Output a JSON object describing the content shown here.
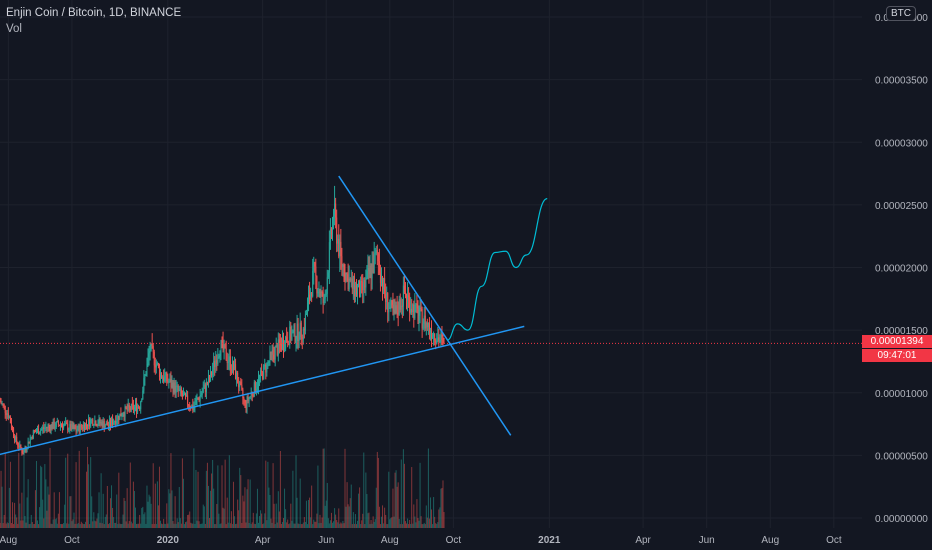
{
  "header": {
    "title": "Enjin Coin / Bitcoin, 1D, BINANCE",
    "indicator": "Vol"
  },
  "currency_badge": "BTC",
  "last_price": {
    "value": 1.394e-05,
    "label": "0.00001394",
    "countdown": "09:47:01",
    "color": "#f23645"
  },
  "colors": {
    "background": "#131722",
    "up": "#26a69a",
    "down": "#ef5350",
    "trendline": "#2196f3",
    "projection": "#00bcd4",
    "grid": "#1e222d"
  },
  "chart_data": {
    "type": "candlestick",
    "symbol": "ENJBTC",
    "interval": "1D",
    "exchange": "BINANCE",
    "x_range": [
      "2019-07-24",
      "2021-10-28"
    ],
    "ylim": [
      0,
      4e-05
    ],
    "y_ticks": [
      {
        "value": 0.0,
        "label": "0.00000000"
      },
      {
        "value": 5e-06,
        "label": "0.00000500"
      },
      {
        "value": 1e-05,
        "label": "0.00001000"
      },
      {
        "value": 1.5e-05,
        "label": "0.00001500"
      },
      {
        "value": 2e-05,
        "label": "0.00002000"
      },
      {
        "value": 2.5e-05,
        "label": "0.00002500"
      },
      {
        "value": 3e-05,
        "label": "0.00003000"
      },
      {
        "value": 3.5e-05,
        "label": "0.00003500"
      },
      {
        "value": 4e-05,
        "label": "0.00004000"
      }
    ],
    "x_ticks": [
      {
        "date": "2019-08-01",
        "label": "Aug",
        "bold": false
      },
      {
        "date": "2019-10-01",
        "label": "Oct",
        "bold": false
      },
      {
        "date": "2020-01-01",
        "label": "2020",
        "bold": true
      },
      {
        "date": "2020-04-01",
        "label": "Apr",
        "bold": false
      },
      {
        "date": "2020-06-01",
        "label": "Jun",
        "bold": false
      },
      {
        "date": "2020-08-01",
        "label": "Aug",
        "bold": false
      },
      {
        "date": "2020-10-01",
        "label": "Oct",
        "bold": false
      },
      {
        "date": "2021-01-01",
        "label": "2021",
        "bold": true
      },
      {
        "date": "2021-04-01",
        "label": "Apr",
        "bold": false
      },
      {
        "date": "2021-06-01",
        "label": "Jun",
        "bold": false
      },
      {
        "date": "2021-08-01",
        "label": "Aug",
        "bold": false
      },
      {
        "date": "2021-10-01",
        "label": "Oct",
        "bold": false
      }
    ],
    "price_path": [
      {
        "date": "2019-07-24",
        "close": 9.3e-06
      },
      {
        "date": "2019-08-01",
        "close": 8.3e-06
      },
      {
        "date": "2019-08-08",
        "close": 6.2e-06
      },
      {
        "date": "2019-08-15",
        "close": 5.2e-06
      },
      {
        "date": "2019-08-25",
        "close": 6.8e-06
      },
      {
        "date": "2019-09-05",
        "close": 7.2e-06
      },
      {
        "date": "2019-09-20",
        "close": 7.5e-06
      },
      {
        "date": "2019-10-05",
        "close": 7e-06
      },
      {
        "date": "2019-10-20",
        "close": 7.8e-06
      },
      {
        "date": "2019-11-05",
        "close": 7.4e-06
      },
      {
        "date": "2019-11-20",
        "close": 8.5e-06
      },
      {
        "date": "2019-12-05",
        "close": 9e-06
      },
      {
        "date": "2019-12-15",
        "close": 1.35e-05
      },
      {
        "date": "2019-12-25",
        "close": 1.15e-05
      },
      {
        "date": "2020-01-10",
        "close": 1.02e-05
      },
      {
        "date": "2020-01-25",
        "close": 8.8e-06
      },
      {
        "date": "2020-02-10",
        "close": 1.1e-05
      },
      {
        "date": "2020-02-20",
        "close": 1.38e-05
      },
      {
        "date": "2020-03-05",
        "close": 1.18e-05
      },
      {
        "date": "2020-03-15",
        "close": 9e-06
      },
      {
        "date": "2020-03-25",
        "close": 1.05e-05
      },
      {
        "date": "2020-04-10",
        "close": 1.3e-05
      },
      {
        "date": "2020-04-25",
        "close": 1.45e-05
      },
      {
        "date": "2020-05-10",
        "close": 1.5e-05
      },
      {
        "date": "2020-05-20",
        "close": 1.95e-05
      },
      {
        "date": "2020-05-30",
        "close": 1.7e-05
      },
      {
        "date": "2020-06-08",
        "close": 2.45e-05
      },
      {
        "date": "2020-06-15",
        "close": 2.05e-05
      },
      {
        "date": "2020-06-25",
        "close": 1.85e-05
      },
      {
        "date": "2020-07-05",
        "close": 1.8e-05
      },
      {
        "date": "2020-07-20",
        "close": 2.1e-05
      },
      {
        "date": "2020-07-28",
        "close": 1.75e-05
      },
      {
        "date": "2020-08-05",
        "close": 1.6e-05
      },
      {
        "date": "2020-08-15",
        "close": 1.8e-05
      },
      {
        "date": "2020-08-25",
        "close": 1.65e-05
      },
      {
        "date": "2020-09-05",
        "close": 1.55e-05
      },
      {
        "date": "2020-09-15",
        "close": 1.45e-05
      },
      {
        "date": "2020-09-22",
        "close": 1.39e-05
      }
    ],
    "volume_ylim": [
      0,
      100
    ],
    "trendlines": [
      {
        "name": "support",
        "from": {
          "date": "2019-07-20",
          "price": 5e-06
        },
        "to": {
          "date": "2020-12-08",
          "price": 1.53e-05
        }
      },
      {
        "name": "resistance",
        "from": {
          "date": "2020-06-13",
          "price": 2.73e-05
        },
        "to": {
          "date": "2020-11-25",
          "price": 6.6e-06
        }
      }
    ],
    "projection_path": [
      {
        "date": "2020-09-25",
        "price": 1.42e-05
      },
      {
        "date": "2020-10-05",
        "price": 1.55e-05
      },
      {
        "date": "2020-10-15",
        "price": 1.5e-05
      },
      {
        "date": "2020-10-28",
        "price": 1.85e-05
      },
      {
        "date": "2020-11-10",
        "price": 2.12e-05
      },
      {
        "date": "2020-11-20",
        "price": 2.13e-05
      },
      {
        "date": "2020-11-30",
        "price": 2e-05
      },
      {
        "date": "2020-12-10",
        "price": 2.1e-05
      },
      {
        "date": "2020-12-30",
        "price": 2.55e-05
      }
    ]
  }
}
